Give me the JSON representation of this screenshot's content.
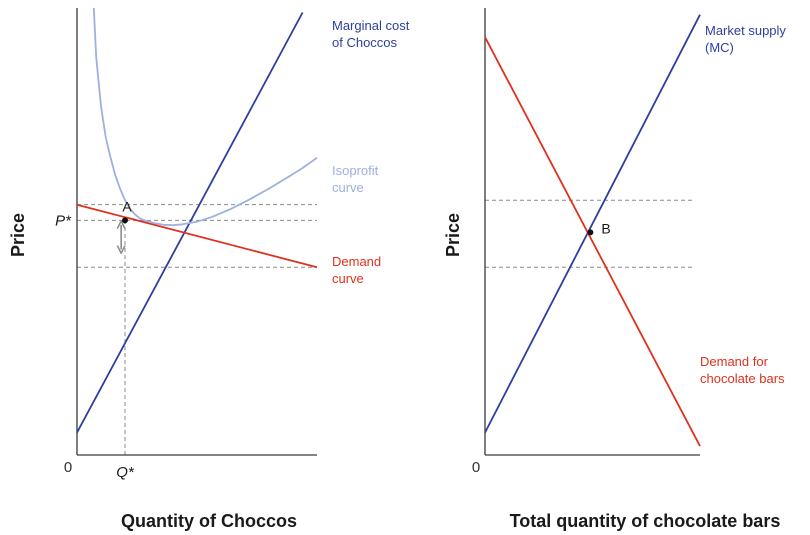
{
  "chart_data": [
    {
      "type": "line",
      "xlabel": "Quantity of Choccos",
      "ylabel": "Price",
      "origin_label": "0",
      "x_tick_labels": [
        {
          "x": 10,
          "label": "Q*"
        }
      ],
      "y_tick_labels": [
        {
          "y": 52.5,
          "label": "P*"
        }
      ],
      "xlim": [
        0,
        50
      ],
      "ylim": [
        0,
        100
      ],
      "series": [
        {
          "name": "Marginal cost of Choccos",
          "label_lines": [
            "Marginal cost",
            "of Choccos"
          ],
          "color": "#2d3f9e",
          "x": [
            0,
            47
          ],
          "y": [
            5,
            99
          ]
        },
        {
          "name": "Demand curve",
          "label_lines": [
            "Demand",
            "curve"
          ],
          "color": "#e0301e",
          "x": [
            0,
            50
          ],
          "y": [
            56,
            42
          ]
        },
        {
          "name": "Isoprofit curve",
          "label_lines": [
            "Isoprofit",
            "curve"
          ],
          "color": "#9eb0e0",
          "x": [
            3.5,
            4,
            5,
            6,
            7,
            8,
            9,
            10,
            11,
            12,
            13,
            14,
            16,
            18,
            20,
            22,
            25,
            28,
            32,
            36,
            40,
            44,
            47,
            50
          ],
          "y": [
            100,
            89,
            78,
            71,
            66.5,
            62.5,
            59.5,
            57,
            55.2,
            53.9,
            53,
            52.5,
            51.9,
            51.5,
            51.4,
            51.6,
            52.2,
            53.2,
            55,
            57.2,
            59.6,
            62.2,
            64.2,
            66.5
          ]
        }
      ],
      "guides": {
        "horizontal_y": [
          56,
          52.5,
          42
        ],
        "vertical_x": [
          10
        ]
      },
      "points": [
        {
          "x": 10,
          "y": 52.5,
          "label": "A"
        }
      ],
      "gap_arrow": {
        "x": 9.2,
        "y_from": 51.5,
        "y_to": 46
      }
    },
    {
      "type": "line",
      "xlabel": "Total quantity of chocolate bars",
      "ylabel": "Price",
      "origin_label": "0",
      "xlim": [
        0,
        100
      ],
      "ylim": [
        0,
        100
      ],
      "series": [
        {
          "name": "Market supply (MC)",
          "label_lines": [
            "Market supply",
            "(MC)"
          ],
          "color": "#2d3f9e",
          "x": [
            0,
            100
          ],
          "y": [
            5,
            98.5
          ]
        },
        {
          "name": "Demand for chocolate bars",
          "label_lines": [
            "Demand for",
            "chocolate bars"
          ],
          "color": "#e0301e",
          "x": [
            0,
            100
          ],
          "y": [
            93.5,
            2
          ]
        }
      ],
      "guides": {
        "horizontal_y": [
          57,
          42
        ]
      },
      "points": [
        {
          "x": 49,
          "y": 49.8,
          "label": "B"
        }
      ]
    }
  ]
}
